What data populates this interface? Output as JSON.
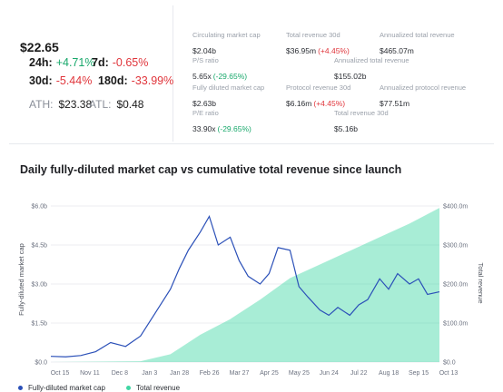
{
  "header": {
    "price": "$22.65",
    "changes": [
      {
        "label": "24h:",
        "value": "+4.71%",
        "dir": "pos"
      },
      {
        "label": "7d:",
        "value": "-0.65%",
        "dir": "neg"
      },
      {
        "label": "30d:",
        "value": "-5.44%",
        "dir": "neg"
      },
      {
        "label": "180d:",
        "value": "-33.99%",
        "dir": "neg"
      }
    ],
    "ath_label": "ATH:",
    "ath_value": "$23.38",
    "atl_label": "ATL:",
    "atl_value": "$0.48"
  },
  "metrics": [
    {
      "label": "Circulating market cap",
      "value": "$2.04b",
      "change": ""
    },
    {
      "label": "Total revenue 30d",
      "value": "$36.95m",
      "change": "(+4.45%)"
    },
    {
      "label": "Annualized total revenue",
      "value": "$465.07m",
      "change": ""
    },
    {
      "label": "P/S ratio",
      "value": "5.65x",
      "change": "(-29.65%)"
    },
    {
      "label": "Annualized total revenue",
      "value": "$155.02b",
      "change": ""
    },
    {
      "label": "Fully diluted market cap",
      "value": "$2.63b",
      "change": ""
    },
    {
      "label": "Protocol revenue 30d",
      "value": "$6.16m",
      "change": "(+4.45%)"
    },
    {
      "label": "Annualized protocol revenue",
      "value": "$77.51m",
      "change": ""
    },
    {
      "label": "P/E ratio",
      "value": "33.90x",
      "change": "(-29.65%)"
    },
    {
      "label": "Total revenue 30d",
      "value": "$5.16b",
      "change": ""
    }
  ],
  "colors": {
    "market_cap_line": "#2b50b8",
    "revenue_area": "#3fd6a3",
    "positive": "#18a86b",
    "negative": "#e0353b"
  },
  "chart_data": {
    "type": "line",
    "title": "Daily fully-diluted market cap vs cumulative total revenue since launch",
    "xlabel": "",
    "ylabel": "Fully-diluted market cap",
    "y2label": "Total revenue",
    "x_ticks": [
      "Oct 15",
      "Nov 11",
      "Dec 8",
      "Jan 3",
      "Jan 28",
      "Feb 26",
      "Mar 27",
      "Apr 25",
      "May 25",
      "Jun 24",
      "Jul 22",
      "Aug 18",
      "Sep 15",
      "Oct 13"
    ],
    "y_ticks": [
      "$0.0",
      "$1.5b",
      "$3.0b",
      "$4.5b",
      "$6.0b"
    ],
    "y2_ticks": [
      "$0.0",
      "$100.0m",
      "$200.0m",
      "$300.0m",
      "$400.0m"
    ],
    "ylim": [
      0,
      6.0
    ],
    "y2lim": [
      0,
      400
    ],
    "grid": true,
    "legend_position": "bottom-left",
    "series": [
      {
        "name": "Fully-diluted market cap",
        "kind": "line",
        "axis": "left",
        "x": [
          0,
          0.5,
          1,
          1.5,
          2,
          2.5,
          3,
          3.5,
          4,
          4.3,
          4.6,
          5,
          5.3,
          5.6,
          6,
          6.3,
          6.6,
          7,
          7.3,
          7.6,
          8,
          8.3,
          8.6,
          9,
          9.3,
          9.6,
          10,
          10.3,
          10.6,
          11,
          11.3,
          11.6,
          12,
          12.3,
          12.6,
          13
        ],
        "values": [
          0.22,
          0.2,
          0.25,
          0.4,
          0.75,
          0.6,
          1.0,
          1.9,
          2.8,
          3.6,
          4.3,
          5.0,
          5.6,
          4.5,
          4.8,
          3.9,
          3.3,
          3.0,
          3.4,
          4.4,
          4.3,
          2.9,
          2.5,
          2.0,
          1.8,
          2.1,
          1.8,
          2.2,
          2.4,
          3.2,
          2.8,
          3.4,
          3.0,
          3.2,
          2.6,
          2.7
        ]
      },
      {
        "name": "Total revenue",
        "kind": "area",
        "axis": "right",
        "x": [
          0,
          3,
          4,
          5,
          6,
          7,
          8,
          9,
          10,
          11,
          12,
          13
        ],
        "values": [
          0,
          2,
          20,
          70,
          110,
          160,
          215,
          250,
          285,
          320,
          355,
          395
        ]
      }
    ]
  }
}
